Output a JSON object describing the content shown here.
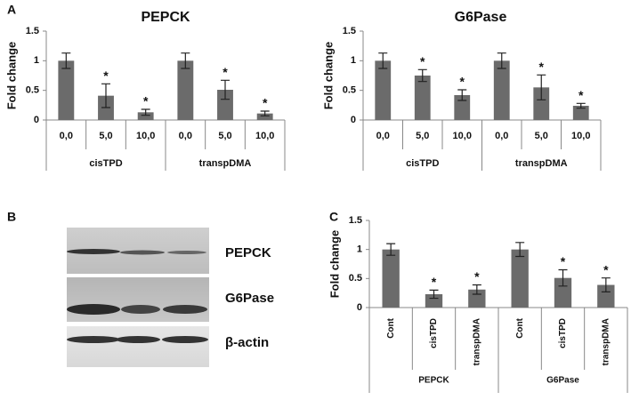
{
  "chart_data": [
    {
      "type": "bar",
      "panel": "A",
      "title": "PEPCK",
      "ylabel": "Fold change",
      "categories": [
        "0,0",
        "5,0",
        "10,0",
        "0,0",
        "5,0",
        "10,0"
      ],
      "groups": [
        "cisTPD",
        "transpDMA"
      ],
      "values": [
        1.0,
        0.41,
        0.13,
        1.0,
        0.51,
        0.11
      ],
      "errors": [
        0.13,
        0.2,
        0.05,
        0.13,
        0.16,
        0.04
      ],
      "significance": [
        null,
        "*",
        "*",
        null,
        "*",
        "*"
      ],
      "color": "#6b6b6b",
      "ylim": [
        0,
        1.5
      ],
      "yticks": [
        0,
        0.5,
        1,
        1.5
      ]
    },
    {
      "type": "bar",
      "title": "G6Pase",
      "ylabel": "Fold change",
      "categories": [
        "0,0",
        "5,0",
        "10,0",
        "0,0",
        "5,0",
        "10,0"
      ],
      "groups": [
        "cisTPD",
        "transpDMA"
      ],
      "values": [
        1.0,
        0.75,
        0.42,
        1.0,
        0.55,
        0.24
      ],
      "errors": [
        0.13,
        0.1,
        0.09,
        0.13,
        0.21,
        0.04
      ],
      "significance": [
        null,
        "*",
        "*",
        null,
        "*",
        "*"
      ],
      "color": "#6b6b6b",
      "ylim": [
        0,
        1.5
      ],
      "yticks": [
        0,
        0.5,
        1,
        1.5
      ]
    },
    {
      "type": "bar",
      "panel": "C",
      "ylabel": "Fold change",
      "categories": [
        "Cont",
        "cisTPD",
        "transpDMA",
        "Cont",
        "cisTPD",
        "transpDMA"
      ],
      "groups": [
        "PEPCK",
        "G6Pase"
      ],
      "values": [
        1.0,
        0.23,
        0.31,
        1.0,
        0.51,
        0.39
      ],
      "errors": [
        0.1,
        0.07,
        0.08,
        0.12,
        0.14,
        0.12
      ],
      "significance": [
        null,
        "*",
        "*",
        null,
        "*",
        "*"
      ],
      "color": "#6b6b6b",
      "ylim": [
        0,
        1.5
      ],
      "yticks": [
        0,
        0.5,
        1,
        1.5
      ]
    }
  ],
  "blot": {
    "panel": "B",
    "labels": [
      "PEPCK",
      "G6Pase",
      "β-actin"
    ]
  }
}
